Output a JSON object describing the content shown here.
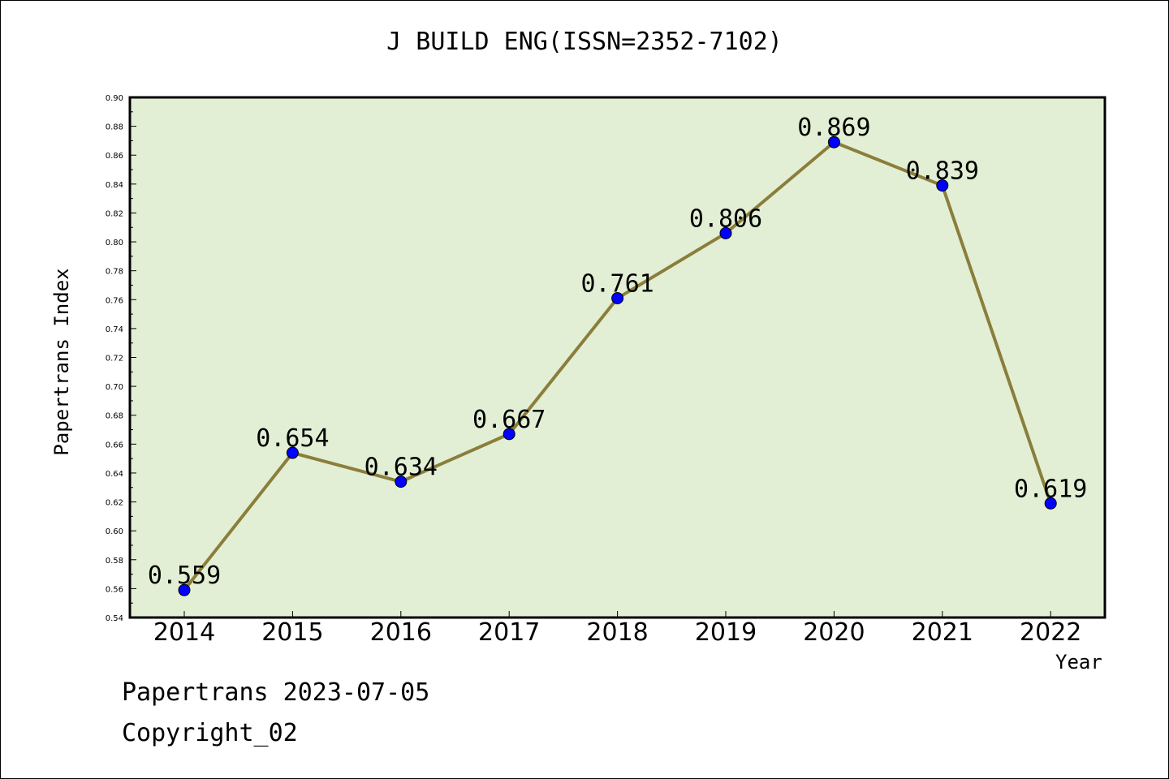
{
  "chart_data": {
    "type": "line",
    "title": "J BUILD ENG(ISSN=2352-7102)",
    "xlabel": "Year",
    "ylabel": "Papertrans Index",
    "categories": [
      "2014",
      "2015",
      "2016",
      "2017",
      "2018",
      "2019",
      "2020",
      "2021",
      "2022"
    ],
    "values": [
      0.559,
      0.654,
      0.634,
      0.667,
      0.761,
      0.806,
      0.869,
      0.839,
      0.619
    ],
    "data_labels": [
      "0.559",
      "0.654",
      "0.634",
      "0.667",
      "0.761",
      "0.806",
      "0.869",
      "0.839",
      "0.619"
    ],
    "ylim": [
      0.54,
      0.9
    ],
    "yticks": [
      "0.54",
      "0.56",
      "0.58",
      "0.60",
      "0.62",
      "0.64",
      "0.66",
      "0.68",
      "0.70",
      "0.72",
      "0.74",
      "0.76",
      "0.78",
      "0.80",
      "0.82",
      "0.84",
      "0.86",
      "0.88",
      "0.90"
    ],
    "grid": false,
    "colors": {
      "plot_background": "#e2efd5",
      "line": "#8b7e3a",
      "marker": "#0000ff"
    }
  },
  "footer": {
    "line1": "Papertrans 2023-07-05",
    "line2": "Copyright_02"
  }
}
